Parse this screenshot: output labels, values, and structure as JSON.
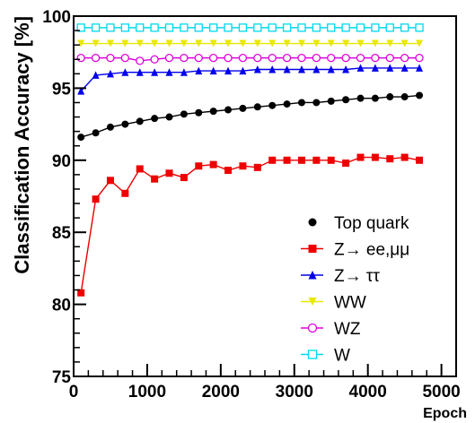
{
  "chart_data": {
    "type": "line",
    "xlabel": "Epoch",
    "ylabel": "Classification Accuracy [%]",
    "xlim": [
      0,
      5200
    ],
    "ylim": [
      75,
      100
    ],
    "x_ticks": [
      0,
      1000,
      2000,
      3000,
      4000,
      5000
    ],
    "y_ticks": [
      75,
      80,
      85,
      90,
      95,
      100
    ],
    "grid": false,
    "legend_position": "lower-right",
    "x": [
      100,
      300,
      500,
      700,
      900,
      1100,
      1300,
      1500,
      1700,
      1900,
      2100,
      2300,
      2500,
      2700,
      2900,
      3100,
      3300,
      3500,
      3700,
      3900,
      4100,
      4300,
      4500,
      4700
    ],
    "series": [
      {
        "name": "Top quark",
        "color": "#000000",
        "marker": "circle-filled",
        "values": [
          91.6,
          91.9,
          92.3,
          92.5,
          92.7,
          92.9,
          93.0,
          93.2,
          93.3,
          93.4,
          93.5,
          93.6,
          93.7,
          93.8,
          93.9,
          94.0,
          94.0,
          94.1,
          94.2,
          94.3,
          94.3,
          94.4,
          94.4,
          94.5
        ]
      },
      {
        "name": "Z→ ee,μμ",
        "color": "#ee0000",
        "marker": "square-filled",
        "values": [
          80.8,
          87.3,
          88.6,
          87.7,
          89.4,
          88.7,
          89.1,
          88.8,
          89.6,
          89.7,
          89.3,
          89.6,
          89.5,
          90.0,
          90.0,
          90.0,
          90.0,
          90.0,
          89.8,
          90.2,
          90.2,
          90.1,
          90.2,
          90.0
        ]
      },
      {
        "name": "Z→ ττ",
        "color": "#0000ee",
        "marker": "triangle-filled",
        "values": [
          94.8,
          95.9,
          96.0,
          96.1,
          96.1,
          96.1,
          96.1,
          96.1,
          96.2,
          96.2,
          96.2,
          96.2,
          96.3,
          96.3,
          96.3,
          96.3,
          96.3,
          96.3,
          96.3,
          96.4,
          96.4,
          96.4,
          96.4,
          96.4
        ]
      },
      {
        "name": "WW",
        "color": "#e8e800",
        "marker": "triangle-down-filled",
        "values": [
          98.1,
          98.1,
          98.1,
          98.1,
          98.1,
          98.1,
          98.1,
          98.1,
          98.1,
          98.1,
          98.1,
          98.1,
          98.1,
          98.1,
          98.1,
          98.1,
          98.1,
          98.1,
          98.1,
          98.1,
          98.1,
          98.1,
          98.1,
          98.1
        ]
      },
      {
        "name": "WZ",
        "color": "#dd00dd",
        "marker": "circle-open",
        "values": [
          97.1,
          97.1,
          97.1,
          97.1,
          96.9,
          97.0,
          97.1,
          97.1,
          97.1,
          97.1,
          97.1,
          97.1,
          97.1,
          97.1,
          97.1,
          97.1,
          97.1,
          97.1,
          97.1,
          97.1,
          97.1,
          97.1,
          97.1,
          97.1
        ]
      },
      {
        "name": "W",
        "color": "#00d8ee",
        "marker": "square-open",
        "values": [
          99.2,
          99.2,
          99.2,
          99.2,
          99.2,
          99.2,
          99.2,
          99.2,
          99.2,
          99.2,
          99.2,
          99.2,
          99.2,
          99.2,
          99.2,
          99.2,
          99.2,
          99.2,
          99.2,
          99.2,
          99.2,
          99.2,
          99.2,
          99.2
        ]
      }
    ]
  }
}
